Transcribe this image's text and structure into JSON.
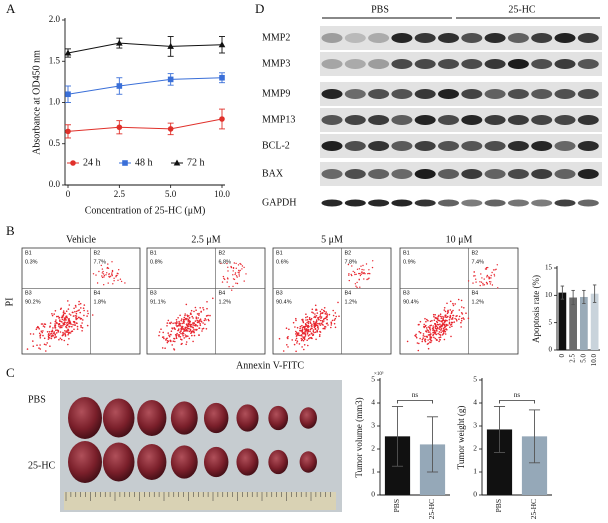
{
  "figure": {
    "panel_labels": {
      "a": "A",
      "b": "B",
      "c": "C",
      "d": "D"
    },
    "blot": {
      "groups": [
        "PBS",
        "25-HC"
      ],
      "rows": [
        "MMP2",
        "MMP3",
        "MMP9",
        "MMP13",
        "BCL-2",
        "BAX",
        "GAPDH"
      ]
    },
    "flow": {
      "x_label": "Annexin V-FITC",
      "y_label": "PI",
      "plots": [
        {
          "title": "Vehicle",
          "quadrants": [
            {
              "name": "B1",
              "value": "0.3%"
            },
            {
              "name": "B2",
              "value": "7.7%"
            },
            {
              "name": "B3",
              "value": "90.2%"
            },
            {
              "name": "B4",
              "value": "1.8%"
            }
          ]
        },
        {
          "title": "2.5 μM",
          "quadrants": [
            {
              "name": "B1",
              "value": "0.8%"
            },
            {
              "name": "B2",
              "value": "6.8%"
            },
            {
              "name": "B3",
              "value": "91.1%"
            },
            {
              "name": "B4",
              "value": "1.2%"
            }
          ]
        },
        {
          "title": "5 μM",
          "quadrants": [
            {
              "name": "B1",
              "value": "0.6%"
            },
            {
              "name": "B2",
              "value": "7.8%"
            },
            {
              "name": "B3",
              "value": "90.4%"
            },
            {
              "name": "B4",
              "value": "1.2%"
            }
          ]
        },
        {
          "title": "10 μM",
          "quadrants": [
            {
              "name": "B1",
              "value": "0.9%"
            },
            {
              "name": "B2",
              "value": "7.4%"
            },
            {
              "name": "B3",
              "value": "90.4%"
            },
            {
              "name": "B4",
              "value": "1.2%"
            }
          ]
        }
      ]
    },
    "photo": {
      "rows": [
        "PBS",
        "25-HC"
      ]
    }
  },
  "chart_data": [
    {
      "type": "line",
      "xlabel": "Concentration of 25-HC (μM)",
      "ylabel": "Absorbance at OD450 nm",
      "categories": [
        "0",
        "2.5",
        "5.0",
        "10.0"
      ],
      "ylim": [
        0,
        2
      ],
      "yticks": [
        {
          "value": 0,
          "label": "0.0"
        },
        {
          "value": 0.5,
          "label": "0.5"
        },
        {
          "value": 1,
          "label": "1.0"
        },
        {
          "value": 1.5,
          "label": "1.5"
        },
        {
          "value": 2,
          "label": "2.0"
        }
      ],
      "legend": "bottom",
      "series": [
        {
          "name": "24 h",
          "color": "#e0302a",
          "marker": "circle",
          "values": [
            0.65,
            0.7,
            0.68,
            0.8
          ],
          "errors": [
            0.08,
            0.08,
            0.07,
            0.12
          ]
        },
        {
          "name": "48 h",
          "color": "#3a6fd8",
          "marker": "square",
          "values": [
            1.1,
            1.2,
            1.28,
            1.3
          ],
          "errors": [
            0.1,
            0.1,
            0.07,
            0.06
          ]
        },
        {
          "name": "72 h",
          "color": "#111111",
          "marker": "triangle",
          "values": [
            1.6,
            1.72,
            1.68,
            1.7
          ],
          "errors": [
            0.05,
            0.06,
            0.12,
            0.1
          ]
        }
      ]
    },
    {
      "type": "bar",
      "ylabel": "Apoptosis rate (%)",
      "categories": [
        "0",
        "2.5",
        "5.0",
        "10.0"
      ],
      "values": [
        10.5,
        9.6,
        9.7,
        10.3
      ],
      "errors": [
        1.2,
        1.3,
        1.2,
        1.6
      ],
      "colors": [
        "#111111",
        "#6b6b6b",
        "#9aabb8",
        "#c9d3db"
      ],
      "ylim": [
        0,
        15
      ],
      "yticks": [
        0,
        5,
        10,
        15
      ]
    },
    {
      "type": "bar",
      "ylabel": "Tumor volume (mm3)",
      "y_multiplier": "×10³",
      "categories": [
        "PBS",
        "25-HC"
      ],
      "values": [
        2.55,
        2.2
      ],
      "errors": [
        1.3,
        1.2
      ],
      "colors": [
        "#111111",
        "#95a8b8"
      ],
      "ylim": [
        0,
        5
      ],
      "yticks": [
        0,
        1,
        2,
        3,
        4,
        5
      ],
      "annotation": "ns"
    },
    {
      "type": "bar",
      "ylabel": "Tumor weight (g)",
      "categories": [
        "PBS",
        "25-HC"
      ],
      "values": [
        2.85,
        2.55
      ],
      "errors": [
        1.0,
        1.15
      ],
      "colors": [
        "#111111",
        "#95a8b8"
      ],
      "ylim": [
        0,
        5
      ],
      "yticks": [
        0,
        1,
        2,
        3,
        4,
        5
      ],
      "annotation": "ns"
    }
  ]
}
